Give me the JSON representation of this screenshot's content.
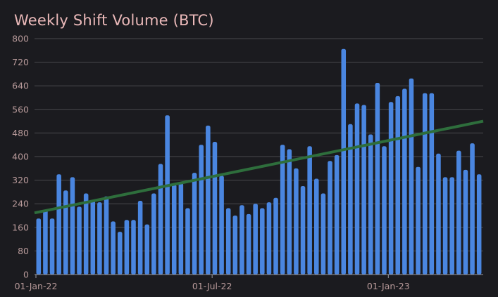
{
  "chart_data": {
    "type": "bar",
    "title": "Weekly Shift Volume (BTC)",
    "xlabel": "",
    "ylabel": "",
    "ylim": [
      0,
      800
    ],
    "yticks": [
      0,
      80,
      160,
      240,
      320,
      400,
      480,
      560,
      640,
      720,
      800
    ],
    "xtick_labels": [
      {
        "label": "01-Jan-22",
        "index": 0
      },
      {
        "label": "01-Jul-22",
        "index": 26
      },
      {
        "label": "01-Jan-23",
        "index": 52
      }
    ],
    "grid": true,
    "series": [
      {
        "name": "Weekly Shift Volume",
        "color": "#4a86e0",
        "values": [
          190,
          220,
          190,
          340,
          285,
          330,
          230,
          275,
          250,
          245,
          265,
          180,
          145,
          185,
          185,
          250,
          170,
          275,
          375,
          540,
          305,
          310,
          225,
          345,
          440,
          505,
          450,
          335,
          225,
          200,
          235,
          205,
          240,
          225,
          245,
          260,
          440,
          425,
          360,
          300,
          435,
          325,
          275,
          385,
          405,
          765,
          510,
          580,
          575,
          475,
          650,
          435,
          585,
          605,
          630,
          665,
          365,
          615,
          615,
          410,
          330,
          330,
          420,
          355,
          445,
          340
        ]
      },
      {
        "name": "Trend",
        "type": "line",
        "color": "#2e6e3c",
        "start": 209,
        "end": 520
      }
    ]
  }
}
